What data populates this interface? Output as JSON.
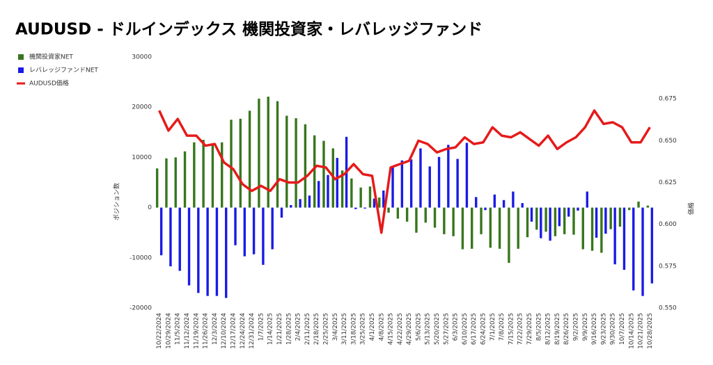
{
  "chart_data": {
    "type": "bar_line",
    "title": "AUDUSD - ドルインデックス 機関投資家・レバレッジファンド",
    "y_label": "ポジション数",
    "y2_label": "価格",
    "categories": [
      "10/22/2024",
      "10/29/2024",
      "11/5/2024",
      "11/12/2024",
      "11/19/2024",
      "11/26/2024",
      "12/3/2024",
      "12/10/2024",
      "12/17/2024",
      "12/24/2024",
      "12/31/2024",
      "1/7/2025",
      "1/14/2025",
      "1/21/2025",
      "1/28/2025",
      "2/4/2025",
      "2/11/2025",
      "2/18/2025",
      "2/25/2025",
      "3/4/2025",
      "3/11/2025",
      "3/18/2025",
      "3/25/2025",
      "4/1/2025",
      "4/8/2025",
      "4/15/2025",
      "4/22/2025",
      "4/29/2025",
      "5/6/2025",
      "5/13/2025",
      "5/20/2025",
      "5/27/2025",
      "6/3/2025",
      "6/10/2025",
      "6/17/2025",
      "6/24/2025",
      "7/1/2025",
      "7/8/2025",
      "7/15/2025",
      "7/22/2025",
      "7/29/2025",
      "8/5/2025",
      "8/12/2025",
      "8/19/2025",
      "8/26/2025",
      "9/2/2025",
      "9/9/2025",
      "9/16/2025",
      "9/23/2025",
      "9/30/2025",
      "10/7/2025",
      "10/14/2025",
      "10/21/2025",
      "10/28/2025"
    ],
    "series": [
      {
        "name": "機関投資家NET",
        "color": "#38761d",
        "kind": "bar",
        "values": [
          7800,
          9800,
          10000,
          11200,
          13000,
          13500,
          12800,
          13000,
          17500,
          17700,
          19300,
          21700,
          22100,
          21200,
          18300,
          17800,
          16600,
          14400,
          13300,
          11800,
          7400,
          5800,
          4000,
          4200,
          2000,
          -1000,
          -2200,
          -2800,
          -5000,
          -3000,
          -4000,
          -5300,
          -5700,
          -8300,
          -8200,
          -5300,
          -8000,
          -8200,
          -11000,
          -8200,
          -5900,
          -4400,
          -4800,
          -5700,
          -5300,
          -5400,
          -8300,
          -8600,
          -9000,
          -4300,
          -3800,
          -500,
          1200,
          400
        ]
      },
      {
        "name": "レバレッジファンドNET",
        "color": "#1a1ae6",
        "kind": "bar",
        "values": [
          -9500,
          -11700,
          -12600,
          -15500,
          -17000,
          -17600,
          -17600,
          -18000,
          -7500,
          -9700,
          -9300,
          -11400,
          -8300,
          -2000,
          500,
          1700,
          2400,
          5300,
          6500,
          9900,
          14100,
          -300,
          -200,
          1800,
          3400,
          8100,
          9400,
          9600,
          11800,
          8200,
          10100,
          12500,
          9700,
          12900,
          2100,
          -500,
          2600,
          1500,
          3200,
          900,
          -2800,
          -6100,
          -6600,
          -3700,
          -1800,
          -600,
          3200,
          -6000,
          -5200,
          -11300,
          -12400,
          -16500,
          -17600,
          -15100
        ]
      },
      {
        "name": "AUDUSD価格",
        "color": "#e61a1a",
        "kind": "line",
        "axis": "y2",
        "values": [
          0.668,
          0.656,
          0.663,
          0.653,
          0.653,
          0.647,
          0.648,
          0.637,
          0.633,
          0.624,
          0.62,
          0.623,
          0.62,
          0.627,
          0.625,
          0.625,
          0.629,
          0.635,
          0.634,
          0.627,
          0.63,
          0.636,
          0.63,
          0.629,
          0.595,
          0.634,
          0.636,
          0.638,
          0.65,
          0.648,
          0.643,
          0.645,
          0.646,
          0.652,
          0.648,
          0.649,
          0.658,
          0.653,
          0.652,
          0.655,
          0.651,
          0.647,
          0.653,
          0.645,
          0.649,
          0.652,
          0.658,
          0.668,
          0.66,
          0.661,
          0.658,
          0.649,
          0.649,
          0.658
        ]
      }
    ],
    "ylim": [
      -20000,
      30000
    ],
    "yticks": [
      -20000,
      -10000,
      0,
      10000,
      20000,
      30000
    ],
    "y2lim": [
      0.55,
      0.7
    ],
    "y2ticks": [
      {
        "value": 0.55,
        "label": "0.550"
      },
      {
        "value": 0.575,
        "label": "0.575"
      },
      {
        "value": 0.6,
        "label": "0.600"
      },
      {
        "value": 0.625,
        "label": "0.625"
      },
      {
        "value": 0.65,
        "label": "0.650"
      },
      {
        "value": 0.675,
        "label": "0.675"
      }
    ],
    "grid": false,
    "legend": "top-left"
  }
}
